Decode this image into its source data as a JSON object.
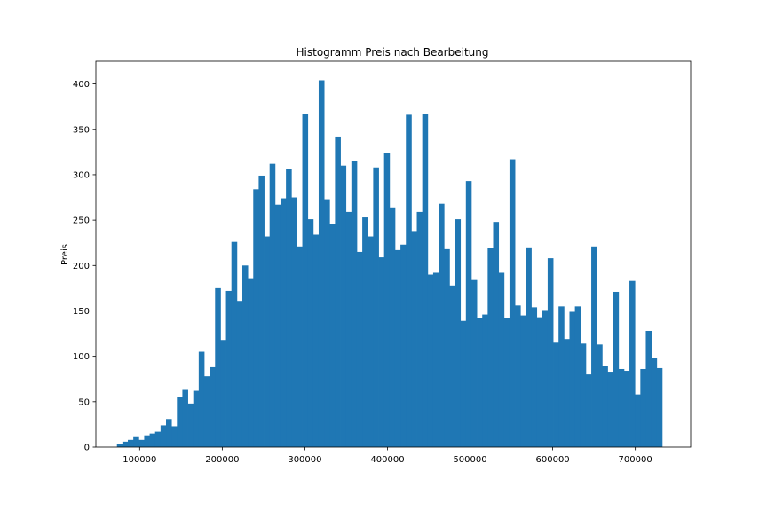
{
  "chart_data": {
    "type": "bar",
    "title": "Histogramm Preis nach Bearbeitung",
    "xlabel": "",
    "ylabel": "Preis",
    "bar_color": "#1f77b4",
    "bin_start": 72500,
    "bin_width": 6600,
    "xlim": [
      47000,
      767000
    ],
    "ylim": [
      0,
      425
    ],
    "x_ticks": [
      100000,
      200000,
      300000,
      400000,
      500000,
      600000,
      700000
    ],
    "y_ticks": [
      0,
      50,
      100,
      150,
      200,
      250,
      300,
      350,
      400
    ],
    "grid": false,
    "values": [
      3,
      6,
      8,
      11,
      8,
      13,
      15,
      17,
      24,
      31,
      23,
      55,
      63,
      48,
      62,
      105,
      78,
      88,
      175,
      118,
      172,
      226,
      161,
      200,
      186,
      284,
      299,
      232,
      312,
      267,
      274,
      306,
      275,
      221,
      367,
      251,
      234,
      404,
      273,
      246,
      342,
      310,
      259,
      315,
      215,
      253,
      232,
      308,
      209,
      324,
      264,
      217,
      223,
      366,
      238,
      259,
      367,
      190,
      192,
      268,
      218,
      178,
      251,
      139,
      293,
      184,
      142,
      146,
      219,
      248,
      192,
      142,
      317,
      156,
      145,
      220,
      154,
      143,
      151,
      208,
      115,
      155,
      119,
      149,
      155,
      114,
      80,
      221,
      113,
      89,
      83,
      171,
      86,
      84,
      183,
      58,
      86,
      128,
      98,
      87
    ]
  }
}
